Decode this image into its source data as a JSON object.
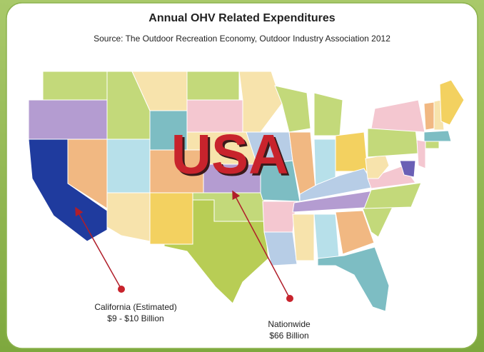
{
  "title": "Annual OHV Related Expenditures",
  "source": "Source: The Outdoor Recreation Economy, Outdoor Industry Association 2012",
  "map_label": "USA",
  "annotations": [
    {
      "label": "California (Estimated)",
      "value": "$9 - $10 Billion"
    },
    {
      "label": "Nationwide",
      "value": "$66 Billion"
    }
  ]
}
